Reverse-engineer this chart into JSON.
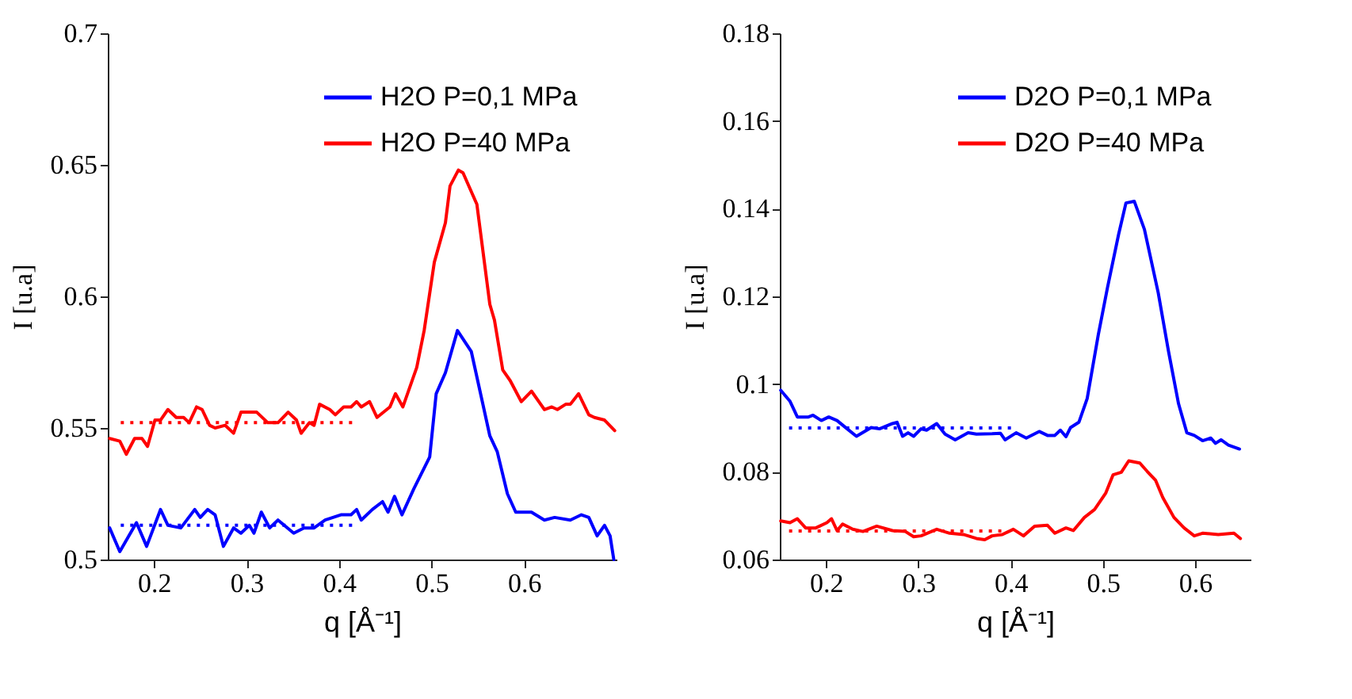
{
  "chart_data": [
    {
      "type": "line",
      "xlabel": "q [Å⁻¹]",
      "ylabel": "I [u.a]",
      "xlim": [
        0.15,
        0.7
      ],
      "xticks": [
        0.2,
        0.3,
        0.4,
        0.5,
        0.6
      ],
      "ylim": [
        0.5,
        0.7
      ],
      "yticks": [
        0.5,
        0.55,
        0.6,
        0.65,
        0.7
      ],
      "grid": false,
      "legend": "top right",
      "line_style": "solid",
      "series": [
        {
          "name": "H2O P=0,1 MPa",
          "color": "#0000ff",
          "x": [
            0.152,
            0.163,
            0.181,
            0.192,
            0.207,
            0.215,
            0.229,
            0.244,
            0.25,
            0.258,
            0.266,
            0.275,
            0.286,
            0.294,
            0.303,
            0.308,
            0.316,
            0.325,
            0.334,
            0.351,
            0.362,
            0.373,
            0.385,
            0.402,
            0.413,
            0.419,
            0.424,
            0.436,
            0.447,
            0.453,
            0.46,
            0.468,
            0.481,
            0.498,
            0.505,
            0.515,
            0.528,
            0.543,
            0.563,
            0.571,
            0.582,
            0.591,
            0.599,
            0.608,
            0.622,
            0.633,
            0.65,
            0.662,
            0.67,
            0.679,
            0.687,
            0.693,
            0.697
          ],
          "values": [
            0.512,
            0.503,
            0.514,
            0.505,
            0.519,
            0.513,
            0.512,
            0.519,
            0.516,
            0.519,
            0.517,
            0.505,
            0.512,
            0.51,
            0.513,
            0.51,
            0.518,
            0.512,
            0.515,
            0.51,
            0.512,
            0.512,
            0.515,
            0.517,
            0.517,
            0.519,
            0.515,
            0.519,
            0.522,
            0.518,
            0.524,
            0.517,
            0.527,
            0.539,
            0.563,
            0.571,
            0.587,
            0.579,
            0.547,
            0.541,
            0.525,
            0.518,
            0.518,
            0.518,
            0.515,
            0.516,
            0.515,
            0.517,
            0.516,
            0.509,
            0.513,
            0.509,
            0.5
          ]
        },
        {
          "name": "H2O P=40 MPa",
          "color": "#ff0000",
          "x": [
            0.152,
            0.163,
            0.17,
            0.179,
            0.187,
            0.193,
            0.201,
            0.207,
            0.215,
            0.224,
            0.232,
            0.238,
            0.246,
            0.252,
            0.26,
            0.266,
            0.277,
            0.286,
            0.294,
            0.311,
            0.323,
            0.334,
            0.345,
            0.354,
            0.359,
            0.368,
            0.373,
            0.379,
            0.39,
            0.396,
            0.405,
            0.413,
            0.419,
            0.424,
            0.433,
            0.441,
            0.455,
            0.461,
            0.469,
            0.484,
            0.492,
            0.503,
            0.515,
            0.52,
            0.529,
            0.534,
            0.549,
            0.563,
            0.568,
            0.577,
            0.585,
            0.597,
            0.608,
            0.622,
            0.63,
            0.636,
            0.645,
            0.65,
            0.659,
            0.67,
            0.676,
            0.687,
            0.698
          ],
          "values": [
            0.546,
            0.545,
            0.54,
            0.546,
            0.546,
            0.543,
            0.553,
            0.553,
            0.557,
            0.554,
            0.554,
            0.552,
            0.558,
            0.557,
            0.551,
            0.55,
            0.551,
            0.548,
            0.556,
            0.556,
            0.552,
            0.552,
            0.556,
            0.553,
            0.548,
            0.552,
            0.551,
            0.559,
            0.557,
            0.555,
            0.558,
            0.558,
            0.56,
            0.558,
            0.56,
            0.554,
            0.558,
            0.563,
            0.558,
            0.573,
            0.587,
            0.613,
            0.628,
            0.642,
            0.648,
            0.647,
            0.635,
            0.597,
            0.591,
            0.572,
            0.568,
            0.56,
            0.564,
            0.557,
            0.558,
            0.557,
            0.559,
            0.559,
            0.563,
            0.555,
            0.554,
            0.553,
            0.549
          ]
        },
        {
          "color": "#ff0000",
          "line_style": "dotted",
          "x": [
            0.164,
            0.418
          ],
          "values": [
            0.552,
            0.552
          ]
        },
        {
          "color": "#0000ff",
          "line_style": "dotted",
          "x": [
            0.164,
            0.418
          ],
          "values": [
            0.513,
            0.513
          ]
        }
      ]
    },
    {
      "type": "line",
      "xlabel": "q [Å⁻¹]",
      "ylabel": "I [u.a]",
      "xlim": [
        0.15,
        0.66
      ],
      "xticks": [
        0.2,
        0.3,
        0.4,
        0.5,
        0.6
      ],
      "ylim": [
        0.06,
        0.18
      ],
      "yticks": [
        0.06,
        0.08,
        0.1,
        0.12,
        0.14,
        0.16,
        0.18
      ],
      "grid": false,
      "legend": "top right",
      "line_style": "solid",
      "series": [
        {
          "name": "D2O P=0,1 MPa",
          "color": "#0000ff",
          "x": [
            0.151,
            0.161,
            0.169,
            0.181,
            0.186,
            0.195,
            0.203,
            0.212,
            0.223,
            0.233,
            0.249,
            0.258,
            0.272,
            0.277,
            0.283,
            0.289,
            0.295,
            0.303,
            0.309,
            0.32,
            0.329,
            0.34,
            0.354,
            0.363,
            0.38,
            0.389,
            0.394,
            0.406,
            0.417,
            0.431,
            0.44,
            0.448,
            0.454,
            0.46,
            0.465,
            0.474,
            0.483,
            0.495,
            0.505,
            0.517,
            0.525,
            0.534,
            0.545,
            0.56,
            0.571,
            0.582,
            0.591,
            0.599,
            0.608,
            0.617,
            0.622,
            0.628,
            0.636,
            0.648
          ],
          "values": [
            0.0986,
            0.0961,
            0.0925,
            0.0925,
            0.0929,
            0.0917,
            0.0925,
            0.0917,
            0.0898,
            0.0881,
            0.0901,
            0.0898,
            0.091,
            0.0913,
            0.0881,
            0.0889,
            0.0881,
            0.0898,
            0.0895,
            0.091,
            0.0886,
            0.0873,
            0.0889,
            0.0886,
            0.0887,
            0.0888,
            0.0873,
            0.0889,
            0.0877,
            0.0892,
            0.0883,
            0.0883,
            0.0895,
            0.088,
            0.0901,
            0.0913,
            0.0967,
            0.1112,
            0.122,
            0.1341,
            0.1413,
            0.1417,
            0.1353,
            0.1208,
            0.1076,
            0.0955,
            0.0889,
            0.0883,
            0.0871,
            0.0877,
            0.0865,
            0.0873,
            0.0861,
            0.0852
          ]
        },
        {
          "name": "D2O P=40 MPa",
          "color": "#ff0000",
          "x": [
            0.151,
            0.161,
            0.169,
            0.178,
            0.189,
            0.201,
            0.206,
            0.212,
            0.218,
            0.229,
            0.24,
            0.255,
            0.272,
            0.286,
            0.295,
            0.303,
            0.32,
            0.334,
            0.349,
            0.363,
            0.372,
            0.38,
            0.391,
            0.403,
            0.414,
            0.426,
            0.44,
            0.448,
            0.46,
            0.468,
            0.48,
            0.491,
            0.503,
            0.511,
            0.52,
            0.528,
            0.54,
            0.548,
            0.557,
            0.565,
            0.577,
            0.588,
            0.599,
            0.608,
            0.625,
            0.642,
            0.649
          ],
          "values": [
            0.0688,
            0.0684,
            0.0693,
            0.0672,
            0.0672,
            0.0684,
            0.0693,
            0.0666,
            0.0681,
            0.0669,
            0.0664,
            0.0676,
            0.0666,
            0.0664,
            0.0652,
            0.0654,
            0.0669,
            0.066,
            0.0657,
            0.0648,
            0.0645,
            0.0654,
            0.0657,
            0.0669,
            0.0654,
            0.0676,
            0.0678,
            0.066,
            0.0672,
            0.0666,
            0.0696,
            0.0714,
            0.0751,
            0.0793,
            0.0799,
            0.0825,
            0.082,
            0.0801,
            0.0781,
            0.0741,
            0.0696,
            0.0672,
            0.0654,
            0.066,
            0.0657,
            0.066,
            0.0648
          ]
        },
        {
          "color": "#0000ff",
          "line_style": "dotted",
          "x": [
            0.16,
            0.405
          ],
          "values": [
            0.09,
            0.09
          ]
        },
        {
          "color": "#ff0000",
          "line_style": "dotted",
          "x": [
            0.16,
            0.39
          ],
          "values": [
            0.0665,
            0.0665
          ]
        }
      ]
    }
  ]
}
